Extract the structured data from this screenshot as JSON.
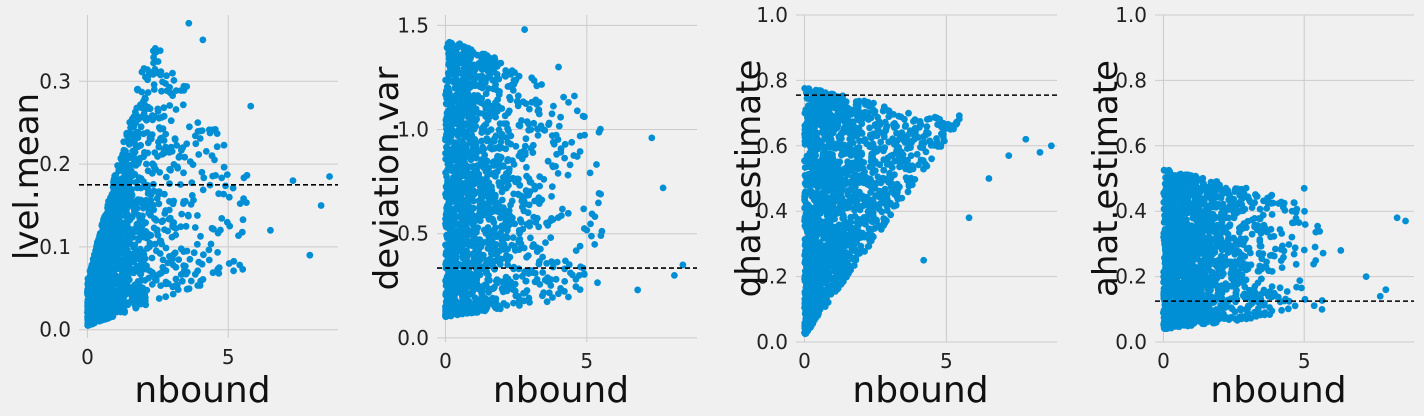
{
  "colors": {
    "background": "#f0f0f0",
    "grid": "#cbcbcb",
    "points": "#008fd5",
    "reference_line": "#000000"
  },
  "chart_data": [
    {
      "type": "scatter",
      "xlabel": "nbound",
      "ylabel": "lvel.mean",
      "xlim": [
        -0.3,
        8.9
      ],
      "ylim": [
        -0.01,
        0.38
      ],
      "xticks": [
        "0",
        "5"
      ],
      "yticks": [
        "0.0",
        "0.1",
        "0.2",
        "0.3"
      ],
      "grid": true,
      "reference_line_y": 0.175,
      "point_cloud": {
        "n": 1700,
        "y_min": 0.005,
        "y_lo_slope": 0.012,
        "y_hi_base": 0.06,
        "y_hi_slope": 0.13,
        "y_hi_max": 0.36,
        "y_hi_decay": 0.05
      },
      "highlight_points": [
        [
          8.6,
          0.185
        ],
        [
          8.3,
          0.15
        ],
        [
          7.3,
          0.18
        ],
        [
          7.9,
          0.09
        ],
        [
          6.5,
          0.12
        ],
        [
          5.8,
          0.27
        ],
        [
          4.1,
          0.35
        ],
        [
          3.6,
          0.37
        ]
      ]
    },
    {
      "type": "scatter",
      "xlabel": "nbound",
      "ylabel": "deviation.var",
      "xlim": [
        -0.3,
        8.9
      ],
      "ylim": [
        -0.02,
        1.55
      ],
      "xticks": [
        "0",
        "5"
      ],
      "yticks": [
        "0.0",
        "0.5",
        "1.0",
        "1.5"
      ],
      "grid": true,
      "reference_line_y": 0.335,
      "point_cloud": {
        "n": 1700,
        "y_min": 0.1,
        "y_lo_slope": 0.02,
        "y_hi_base": 1.45,
        "y_hi_slope": -0.06,
        "y_hi_max": 1.45,
        "y_hi_decay": 0.0
      },
      "highlight_points": [
        [
          8.4,
          0.35
        ],
        [
          8.1,
          0.3
        ],
        [
          7.7,
          0.72
        ],
        [
          7.3,
          0.96
        ],
        [
          6.8,
          0.23
        ],
        [
          2.8,
          1.48
        ],
        [
          4.0,
          1.3
        ]
      ]
    },
    {
      "type": "scatter",
      "xlabel": "nbound",
      "ylabel": "qhat.estimate",
      "xlim": [
        -0.3,
        8.9
      ],
      "ylim": [
        0.0,
        1.0
      ],
      "xticks": [
        "0",
        "5"
      ],
      "yticks": [
        "0.0",
        "0.2",
        "0.4",
        "0.6",
        "0.8",
        "1.0"
      ],
      "grid": true,
      "reference_line_y": 0.755,
      "point_cloud": {
        "n": 1700,
        "y_min": 0.02,
        "y_lo_slope": 0.12,
        "y_hi_base": 0.78,
        "y_hi_slope": -0.02,
        "y_hi_max": 0.78,
        "y_hi_decay": 0.0
      },
      "highlight_points": [
        [
          8.7,
          0.6
        ],
        [
          8.3,
          0.58
        ],
        [
          7.8,
          0.62
        ],
        [
          7.2,
          0.57
        ],
        [
          6.5,
          0.5
        ],
        [
          5.8,
          0.38
        ],
        [
          4.2,
          0.25
        ]
      ]
    },
    {
      "type": "scatter",
      "xlabel": "nbound",
      "ylabel": "ahat.estimate",
      "xlim": [
        -0.3,
        8.9
      ],
      "ylim": [
        0.0,
        1.0
      ],
      "xticks": [
        "0",
        "5"
      ],
      "yticks": [
        "0.0",
        "0.2",
        "0.4",
        "0.6",
        "0.8",
        "1.0"
      ],
      "grid": true,
      "reference_line_y": 0.125,
      "point_cloud": {
        "n": 1700,
        "y_min": 0.04,
        "y_lo_slope": 0.01,
        "y_hi_base": 0.53,
        "y_hi_slope": -0.02,
        "y_hi_max": 0.53,
        "y_hi_decay": 0.0
      },
      "highlight_points": [
        [
          8.6,
          0.37
        ],
        [
          8.3,
          0.38
        ],
        [
          7.9,
          0.16
        ],
        [
          7.7,
          0.14
        ],
        [
          7.2,
          0.2
        ],
        [
          6.3,
          0.28
        ],
        [
          5.0,
          0.47
        ]
      ]
    }
  ]
}
